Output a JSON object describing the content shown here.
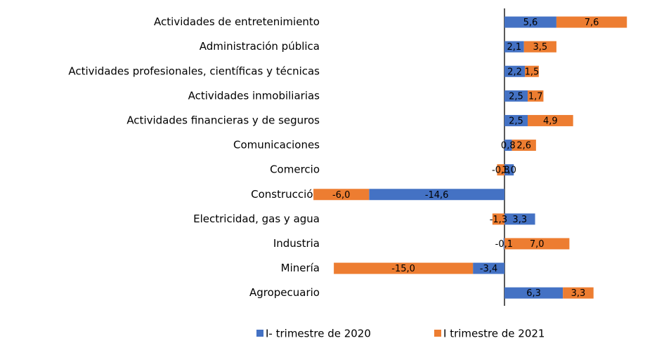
{
  "chart_data": {
    "type": "bar",
    "orientation": "horizontal",
    "stacked": true,
    "categories": [
      "Actividades de entretenimiento",
      "Administración pública",
      "Actividades profesionales, científicas y técnicas",
      "Actividades inmobiliarias",
      "Actividades financieras y de seguros",
      "Comunicaciones",
      "Comercio",
      "Construcción",
      "Electricidad, gas y agua",
      "Industria",
      "Minería",
      "Agropecuario"
    ],
    "series": [
      {
        "name": "I- trimestre de 2020",
        "color": "#4472c4",
        "values": [
          5.6,
          2.1,
          2.2,
          2.5,
          2.5,
          0.8,
          1.0,
          -14.6,
          3.3,
          -0.1,
          -3.4,
          6.3
        ],
        "value_labels": [
          "5,6",
          "2,1",
          "2,2",
          "2,5",
          "2,5",
          "0,8",
          "1,0",
          "-14,6",
          "3,3",
          "-0,1",
          "-3,4",
          "6,3"
        ]
      },
      {
        "name": "I trimestre de 2021",
        "color": "#ed7d31",
        "values": [
          7.6,
          3.5,
          1.5,
          1.7,
          4.9,
          2.6,
          -0.8,
          -6.0,
          -1.3,
          7.0,
          -15.0,
          3.3
        ],
        "value_labels": [
          "7,6",
          "3,5",
          "1,5",
          "1,7",
          "4,9",
          "2,6",
          "-0,8",
          "-6,0",
          "-1,3",
          "7,0",
          "-15,0",
          "3,3"
        ]
      }
    ],
    "legend": "bottom"
  }
}
